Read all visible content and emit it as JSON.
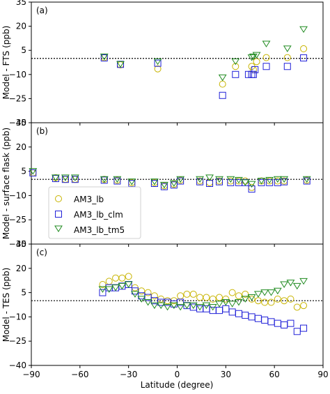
{
  "figure": {
    "xlabel": "Latitude (degree)"
  },
  "colors": {
    "AM3_lb": "#c8b400",
    "AM3_lb_clm": "#2020d8",
    "AM3_lb_tm5": "#1f8a1f",
    "zero_line": "#000000"
  },
  "legend": [
    {
      "key": "AM3_lb",
      "label": "AM3_lb",
      "marker": "circle"
    },
    {
      "key": "AM3_lb_clm",
      "label": "AM3_lb_clm",
      "marker": "square"
    },
    {
      "key": "AM3_lb_tm5",
      "label": "AM3_lb_tm5",
      "marker": "triangle-down"
    }
  ],
  "chart_data": [
    {
      "type": "scatter",
      "panel_label": "(a)",
      "ylabel": "Model - FTS (ppb)",
      "xlim": [
        -90,
        90
      ],
      "ylim": [
        -40,
        35
      ],
      "x_ticks": [
        -90,
        -60,
        -30,
        0,
        30,
        60,
        90
      ],
      "x_tick_labels": [
        "",
        "",
        "",
        "",
        "",
        "",
        ""
      ],
      "y_ticks": [
        -40,
        -25,
        -10,
        5,
        20,
        35
      ],
      "zero_line": 0,
      "series": [
        {
          "key": "AM3_lb",
          "points": [
            [
              -45,
              0.5
            ],
            [
              -35,
              -4
            ],
            [
              -12,
              -6.5
            ],
            [
              28,
              -16
            ],
            [
              36,
              -5
            ],
            [
              46,
              -5
            ],
            [
              47,
              -7
            ],
            [
              49,
              -2
            ],
            [
              55,
              0.5
            ],
            [
              68,
              0.5
            ],
            [
              78,
              6
            ]
          ]
        },
        {
          "key": "AM3_lb_clm",
          "points": [
            [
              -45,
              0.3
            ],
            [
              -35,
              -3.7
            ],
            [
              -12,
              -3
            ],
            [
              28,
              -23
            ],
            [
              36,
              -10
            ],
            [
              44,
              -10
            ],
            [
              46,
              -10
            ],
            [
              47,
              -10
            ],
            [
              48,
              -7
            ],
            [
              55,
              -5
            ],
            [
              68,
              -5
            ],
            [
              78,
              0.3
            ]
          ]
        },
        {
          "key": "AM3_lb_tm5",
          "points": [
            [
              -45,
              1
            ],
            [
              -35,
              -3.7
            ],
            [
              -12,
              -2
            ],
            [
              28,
              -12
            ],
            [
              36,
              -2
            ],
            [
              46,
              0.5
            ],
            [
              47,
              1
            ],
            [
              49,
              2
            ],
            [
              55,
              9
            ],
            [
              68,
              6
            ],
            [
              78,
              18
            ]
          ]
        }
      ]
    },
    {
      "type": "scatter",
      "panel_label": "(b)",
      "ylabel": "Model - surface flask (ppb)",
      "xlim": [
        -90,
        90
      ],
      "ylim": [
        -40,
        35
      ],
      "x_ticks": [
        -90,
        -60,
        -30,
        0,
        30,
        60,
        90
      ],
      "x_tick_labels": [
        "",
        "",
        "",
        "",
        "",
        "",
        ""
      ],
      "y_ticks": [
        -40,
        -25,
        -10,
        5,
        20,
        35
      ],
      "zero_line": 0,
      "series": [
        {
          "key": "AM3_lb",
          "points": [
            [
              -89,
              4
            ],
            [
              -75,
              1
            ],
            [
              -69,
              0
            ],
            [
              -63,
              0
            ],
            [
              -45,
              0
            ],
            [
              -37,
              -0.5
            ],
            [
              -28,
              -2
            ],
            [
              -14,
              -2
            ],
            [
              -8,
              -4
            ],
            [
              -2,
              -3
            ],
            [
              2,
              -0.5
            ],
            [
              14,
              -1
            ],
            [
              20,
              -2
            ],
            [
              26,
              -1
            ],
            [
              33,
              -1
            ],
            [
              38,
              -1
            ],
            [
              42,
              -1
            ],
            [
              46,
              -5
            ],
            [
              52,
              -1
            ],
            [
              57,
              -1
            ],
            [
              62,
              -1
            ],
            [
              66,
              -1
            ],
            [
              80,
              -0.5
            ]
          ]
        },
        {
          "key": "AM3_lb_clm",
          "points": [
            [
              -89,
              4
            ],
            [
              -75,
              0.5
            ],
            [
              -69,
              0
            ],
            [
              -63,
              0
            ],
            [
              -45,
              -0.5
            ],
            [
              -37,
              -1
            ],
            [
              -28,
              -2.5
            ],
            [
              -14,
              -2.5
            ],
            [
              -8,
              -4.5
            ],
            [
              -2,
              -3.5
            ],
            [
              2,
              -1
            ],
            [
              14,
              -1.5
            ],
            [
              20,
              -2.5
            ],
            [
              26,
              -1.5
            ],
            [
              33,
              -2
            ],
            [
              38,
              -2
            ],
            [
              42,
              -2
            ],
            [
              46,
              -6
            ],
            [
              52,
              -2
            ],
            [
              57,
              -2
            ],
            [
              62,
              -2
            ],
            [
              66,
              -1.5
            ],
            [
              80,
              -1
            ]
          ]
        },
        {
          "key": "AM3_lb_tm5",
          "points": [
            [
              -89,
              5
            ],
            [
              -75,
              1
            ],
            [
              -69,
              1
            ],
            [
              -63,
              1
            ],
            [
              -45,
              0
            ],
            [
              -37,
              0
            ],
            [
              -28,
              -1.5
            ],
            [
              -14,
              -1.5
            ],
            [
              -8,
              -3.5
            ],
            [
              -2,
              -2.5
            ],
            [
              2,
              0
            ],
            [
              14,
              0
            ],
            [
              20,
              1
            ],
            [
              26,
              0
            ],
            [
              33,
              0
            ],
            [
              38,
              -0.5
            ],
            [
              42,
              -2
            ],
            [
              46,
              -3
            ],
            [
              52,
              -1
            ],
            [
              57,
              -0.5
            ],
            [
              62,
              0
            ],
            [
              66,
              0
            ],
            [
              80,
              0
            ]
          ]
        }
      ]
    },
    {
      "type": "scatter",
      "panel_label": "(c)",
      "ylabel": "Model - TES (ppb)",
      "xlim": [
        -90,
        90
      ],
      "ylim": [
        -40,
        35
      ],
      "x_ticks": [
        -90,
        -60,
        -30,
        0,
        30,
        60,
        90
      ],
      "x_tick_labels": [
        "−90",
        "−60",
        "−30",
        "0",
        "30",
        "60",
        "90"
      ],
      "y_ticks": [
        -40,
        -25,
        -10,
        5,
        20,
        35
      ],
      "zero_line": 0,
      "series": [
        {
          "key": "AM3_lb",
          "points": [
            [
              -46,
              10
            ],
            [
              -42,
              12
            ],
            [
              -38,
              14
            ],
            [
              -34,
              14
            ],
            [
              -30,
              15
            ],
            [
              -26,
              8
            ],
            [
              -22,
              6
            ],
            [
              -18,
              5
            ],
            [
              -14,
              3
            ],
            [
              -10,
              1
            ],
            [
              -6,
              0
            ],
            [
              -2,
              0
            ],
            [
              2,
              3
            ],
            [
              6,
              4
            ],
            [
              10,
              4
            ],
            [
              14,
              2
            ],
            [
              18,
              2
            ],
            [
              22,
              1
            ],
            [
              26,
              2
            ],
            [
              30,
              1
            ],
            [
              34,
              5
            ],
            [
              38,
              3
            ],
            [
              42,
              4
            ],
            [
              46,
              1
            ],
            [
              50,
              0
            ],
            [
              54,
              -1
            ],
            [
              58,
              -1
            ],
            [
              62,
              1
            ],
            [
              66,
              0
            ],
            [
              70,
              1
            ],
            [
              74,
              -4
            ],
            [
              78,
              -3
            ]
          ]
        },
        {
          "key": "AM3_lb_clm",
          "points": [
            [
              -46,
              5
            ],
            [
              -42,
              8
            ],
            [
              -38,
              8
            ],
            [
              -34,
              9
            ],
            [
              -30,
              10
            ],
            [
              -26,
              6
            ],
            [
              -22,
              3
            ],
            [
              -18,
              2
            ],
            [
              -14,
              0
            ],
            [
              -10,
              -1
            ],
            [
              -6,
              -1
            ],
            [
              -2,
              -2
            ],
            [
              2,
              -1
            ],
            [
              6,
              -3
            ],
            [
              10,
              -4
            ],
            [
              14,
              -5
            ],
            [
              18,
              -5
            ],
            [
              22,
              -6
            ],
            [
              26,
              -6
            ],
            [
              30,
              -5
            ],
            [
              34,
              -7
            ],
            [
              38,
              -8
            ],
            [
              42,
              -9
            ],
            [
              46,
              -10
            ],
            [
              50,
              -11
            ],
            [
              54,
              -12
            ],
            [
              58,
              -13
            ],
            [
              62,
              -14
            ],
            [
              66,
              -15
            ],
            [
              70,
              -14
            ],
            [
              74,
              -19
            ],
            [
              78,
              -17
            ]
          ]
        },
        {
          "key": "AM3_lb_tm5",
          "points": [
            [
              -46,
              7
            ],
            [
              -42,
              7
            ],
            [
              -38,
              8
            ],
            [
              -34,
              9
            ],
            [
              -30,
              10
            ],
            [
              -26,
              4
            ],
            [
              -22,
              1
            ],
            [
              -18,
              -1
            ],
            [
              -14,
              -3
            ],
            [
              -10,
              -3
            ],
            [
              -6,
              -4
            ],
            [
              -2,
              -3
            ],
            [
              2,
              -4
            ],
            [
              6,
              -3
            ],
            [
              10,
              -3
            ],
            [
              14,
              -4
            ],
            [
              18,
              -3
            ],
            [
              22,
              -4
            ],
            [
              26,
              -2
            ],
            [
              30,
              -1
            ],
            [
              34,
              -2
            ],
            [
              38,
              -1
            ],
            [
              42,
              1
            ],
            [
              46,
              2
            ],
            [
              50,
              4
            ],
            [
              54,
              5
            ],
            [
              58,
              5
            ],
            [
              62,
              6
            ],
            [
              66,
              10
            ],
            [
              70,
              11
            ],
            [
              74,
              9
            ],
            [
              78,
              12
            ]
          ]
        }
      ]
    }
  ]
}
